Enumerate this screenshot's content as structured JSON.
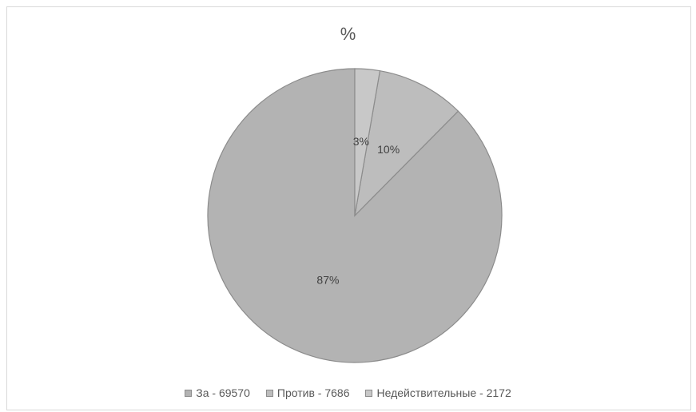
{
  "chart_data": {
    "type": "pie",
    "title": "%",
    "categories": [
      "За - 69570",
      "Против - 7686",
      "Недействительные - 2172"
    ],
    "values": [
      69570,
      7686,
      2172
    ],
    "labels": [
      "87%",
      "10%",
      "3%"
    ],
    "colors": [
      "#b3b3b3",
      "#bdbdbd",
      "#c8c8c8"
    ],
    "border_color": "#8c8c8c",
    "legend": "bottom"
  }
}
